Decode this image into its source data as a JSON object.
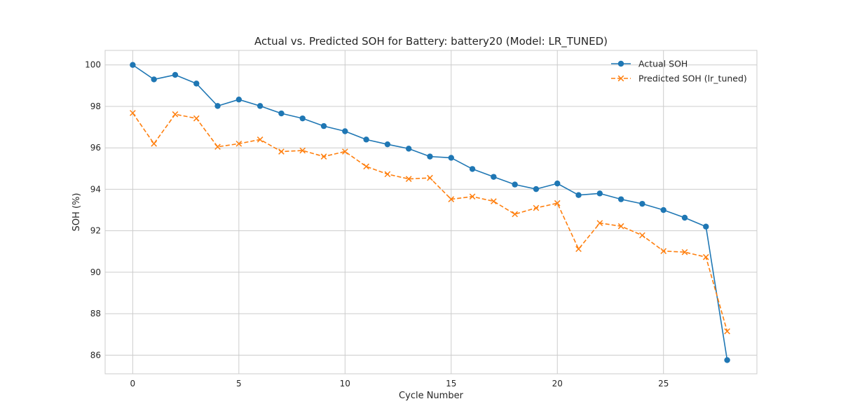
{
  "chart_data": {
    "type": "line",
    "title": "Actual vs. Predicted SOH for Battery: battery20 (Model: LR_TUNED)",
    "xlabel": "Cycle Number",
    "ylabel": "SOH (%)",
    "xlim": [
      -1.3,
      29.4
    ],
    "ylim": [
      85.1,
      100.7
    ],
    "xticks": [
      0,
      5,
      10,
      15,
      20,
      25
    ],
    "yticks": [
      86,
      88,
      90,
      92,
      94,
      96,
      98,
      100
    ],
    "grid": true,
    "legend_position": "top-right",
    "x": [
      0,
      1,
      2,
      3,
      4,
      5,
      6,
      7,
      8,
      9,
      10,
      11,
      12,
      13,
      14,
      15,
      16,
      17,
      18,
      19,
      20,
      21,
      22,
      23,
      24,
      25,
      26,
      27,
      28
    ],
    "series": [
      {
        "name": "Actual SOH",
        "color": "#1f77b4",
        "marker": "circle",
        "line_style": "solid",
        "values": [
          100.0,
          99.3,
          99.52,
          99.1,
          98.02,
          98.33,
          98.02,
          97.66,
          97.42,
          97.05,
          96.8,
          96.4,
          96.17,
          95.96,
          95.58,
          95.52,
          94.98,
          94.6,
          94.23,
          94.01,
          94.28,
          93.72,
          93.8,
          93.52,
          93.3,
          93.0,
          92.63,
          92.2,
          85.76
        ]
      },
      {
        "name": "Predicted SOH (lr_tuned)",
        "color": "#ff7f0e",
        "marker": "x",
        "line_style": "dashed",
        "values": [
          97.68,
          96.2,
          97.62,
          97.42,
          96.05,
          96.2,
          96.4,
          95.82,
          95.87,
          95.58,
          95.82,
          95.1,
          94.73,
          94.5,
          94.55,
          93.52,
          93.65,
          93.42,
          92.8,
          93.1,
          93.33,
          91.12,
          92.37,
          92.22,
          91.78,
          91.02,
          90.97,
          90.73,
          87.15
        ]
      }
    ]
  }
}
